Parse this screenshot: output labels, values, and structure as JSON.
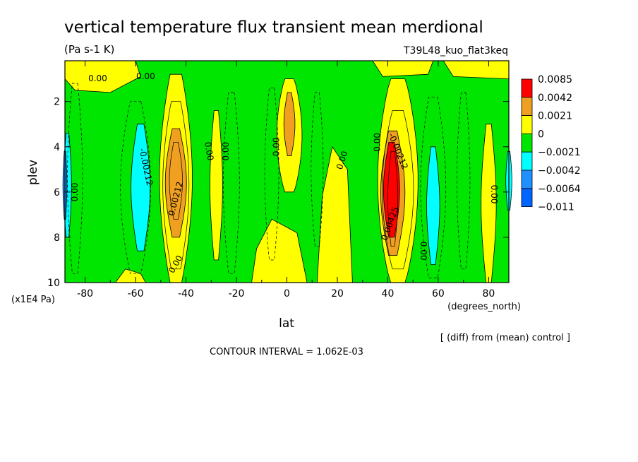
{
  "chart_data": {
    "type": "heatmap",
    "title": "vertical temperature flux transient mean merdional",
    "units": "(Pa s-1 K)",
    "experiment": "T39L48_kuo_flat3keq",
    "xlabel": "lat",
    "x_units": "(degrees_north)",
    "ylabel": "plev",
    "y_units": "(x1E4 Pa)",
    "xlim": [
      -88,
      88
    ],
    "ylim": [
      10,
      0.2
    ],
    "x_ticks": [
      -80,
      -60,
      -40,
      -20,
      0,
      20,
      40,
      60,
      80
    ],
    "x_tick_labels": [
      "-80",
      "-60",
      "-40",
      "-20",
      "0",
      "20",
      "40",
      "60",
      "80"
    ],
    "y_ticks": [
      2,
      4,
      6,
      8,
      10
    ],
    "y_tick_labels": [
      "2",
      "4",
      "6",
      "8",
      "10"
    ],
    "legend_placement": "right",
    "legend": {
      "labels": [
        "0.0085",
        "0.0042",
        "0.0021",
        "0",
        "-0.0021",
        "-0.0042",
        "-0.0064",
        "-0.011"
      ],
      "colors": [
        "#ff0000",
        "#f0a020",
        "#ffff00",
        "#00e600",
        "#00ffff",
        "#1e90ff",
        "#0064ff"
      ]
    },
    "contour_labels": [
      {
        "text": "0.00",
        "lat": -75,
        "p": 1.0,
        "rot": 0
      },
      {
        "text": "0.00",
        "lat": -56,
        "p": 0.9,
        "rot": 0
      },
      {
        "text": "0.00",
        "lat": -84,
        "p": 6.0,
        "rot": -90
      },
      {
        "text": "-0.00212",
        "lat": -56,
        "p": 4.9,
        "rot": 78
      },
      {
        "text": "0.00212",
        "lat": -44,
        "p": 6.3,
        "rot": -75
      },
      {
        "text": "0.00",
        "lat": -44,
        "p": 9.2,
        "rot": -60
      },
      {
        "text": "0.00",
        "lat": -31,
        "p": 4.2,
        "rot": 80
      },
      {
        "text": "0.00",
        "lat": -24,
        "p": 4.2,
        "rot": -90
      },
      {
        "text": "0.00",
        "lat": -4,
        "p": 4.0,
        "rot": -90
      },
      {
        "text": "0.00",
        "lat": 22,
        "p": 4.6,
        "rot": -72
      },
      {
        "text": "0.00",
        "lat": 36,
        "p": 3.8,
        "rot": -90
      },
      {
        "text": "-0.00212",
        "lat": 44,
        "p": 4.2,
        "rot": 68
      },
      {
        "text": "0.00425",
        "lat": 41,
        "p": 7.4,
        "rot": -70
      },
      {
        "text": "0.00",
        "lat": 54,
        "p": 8.6,
        "rot": 90
      },
      {
        "text": "0.00",
        "lat": 82,
        "p": 6.1,
        "rot": 90
      }
    ]
  },
  "footer": {
    "diff_note": "[ (diff) from (mean) control ]",
    "contour_interval": "CONTOUR INTERVAL = 1.062E-03"
  }
}
